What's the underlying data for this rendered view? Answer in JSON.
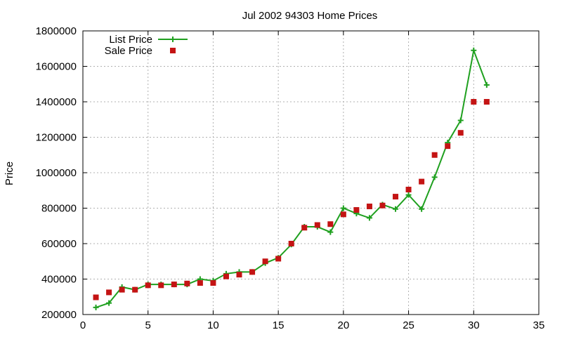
{
  "chart_data": {
    "type": "line",
    "title": "Jul 2002 94303 Home Prices",
    "xlabel": "",
    "ylabel": "Price",
    "xlim": [
      0,
      35
    ],
    "ylim": [
      200000,
      1800000
    ],
    "x_ticks": [
      0,
      5,
      10,
      15,
      20,
      25,
      30,
      35
    ],
    "y_ticks": [
      200000,
      400000,
      600000,
      800000,
      1000000,
      1200000,
      1400000,
      1600000,
      1800000
    ],
    "grid": true,
    "legend_position": "top-left",
    "series": [
      {
        "name": "List Price",
        "style": "line+cross",
        "color": "#1fa01f",
        "x": [
          1,
          2,
          3,
          4,
          5,
          6,
          7,
          8,
          9,
          10,
          11,
          12,
          13,
          14,
          15,
          16,
          17,
          18,
          19,
          20,
          21,
          22,
          23,
          24,
          25,
          26,
          27,
          28,
          29,
          30,
          31
        ],
        "values": [
          240000,
          265000,
          355000,
          340000,
          370000,
          370000,
          370000,
          370000,
          400000,
          390000,
          430000,
          440000,
          440000,
          490000,
          520000,
          595000,
          695000,
          695000,
          665000,
          800000,
          770000,
          745000,
          820000,
          795000,
          875000,
          795000,
          975000,
          1170000,
          1295000,
          1690000,
          1495000
        ]
      },
      {
        "name": "Sale Price",
        "style": "square",
        "color": "#c41414",
        "x": [
          1,
          2,
          3,
          4,
          5,
          6,
          7,
          8,
          9,
          10,
          11,
          12,
          13,
          14,
          15,
          16,
          17,
          18,
          19,
          20,
          21,
          22,
          23,
          24,
          25,
          26,
          27,
          28,
          29,
          30,
          31
        ],
        "values": [
          297000,
          325000,
          340000,
          340000,
          365000,
          365000,
          370000,
          375000,
          378000,
          378000,
          415000,
          425000,
          440000,
          500000,
          515000,
          600000,
          690000,
          705000,
          710000,
          765000,
          790000,
          810000,
          815000,
          865000,
          905000,
          950000,
          1100000,
          1150000,
          1225000,
          1400000,
          1400000
        ]
      }
    ]
  }
}
